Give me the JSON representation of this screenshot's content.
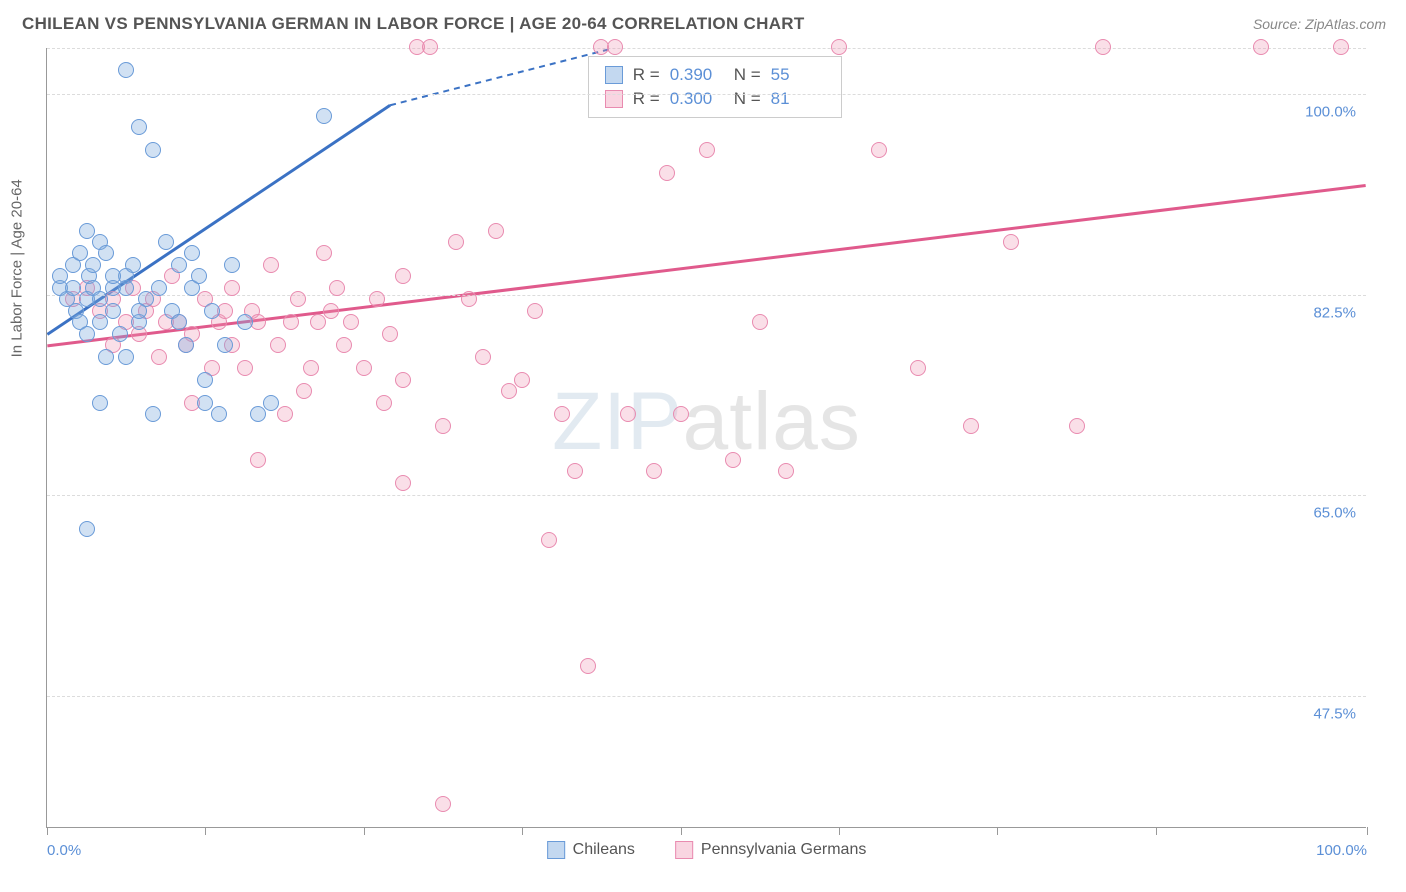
{
  "header": {
    "title": "CHILEAN VS PENNSYLVANIA GERMAN IN LABOR FORCE | AGE 20-64 CORRELATION CHART",
    "source": "Source: ZipAtlas.com"
  },
  "chart": {
    "type": "scatter",
    "y_axis_label": "In Labor Force | Age 20-64",
    "xlim": [
      0,
      100
    ],
    "ylim": [
      36,
      104
    ],
    "x_ticks": [
      0,
      12,
      24,
      36,
      48,
      60,
      72,
      84,
      100
    ],
    "x_tick_labels": {
      "0": "0.0%",
      "100": "100.0%"
    },
    "y_gridlines": [
      47.5,
      65.0,
      82.5,
      100.0,
      104.0
    ],
    "y_tick_labels": [
      "47.5%",
      "65.0%",
      "82.5%",
      "100.0%"
    ],
    "background_color": "#ffffff",
    "grid_color": "#dcdcdc",
    "axis_color": "#999999",
    "label_color_axis": "#666666",
    "label_color_ticks": "#5b8fd6",
    "title_color": "#555555",
    "title_fontsize": 17,
    "tick_fontsize": 15,
    "series": {
      "chileans": {
        "label": "Chileans",
        "color_fill": "rgba(123,168,222,0.35)",
        "color_stroke": "#6a9bd8",
        "marker_size": 16,
        "stats": {
          "R": "0.390",
          "N": "55"
        },
        "trendline": {
          "x1": 0,
          "y1": 79,
          "x2": 26,
          "y2": 99,
          "x2_dash": 43,
          "y2_dash": 104,
          "color": "#3b72c4",
          "width": 3
        },
        "points": [
          [
            1,
            83
          ],
          [
            1,
            84
          ],
          [
            1.5,
            82
          ],
          [
            2,
            85
          ],
          [
            2,
            83
          ],
          [
            2.2,
            81
          ],
          [
            2.5,
            86
          ],
          [
            2.5,
            80
          ],
          [
            3,
            88
          ],
          [
            3,
            82
          ],
          [
            3,
            79
          ],
          [
            3.2,
            84
          ],
          [
            3.5,
            83
          ],
          [
            3.5,
            85
          ],
          [
            4,
            87
          ],
          [
            4,
            82
          ],
          [
            4,
            80
          ],
          [
            4.5,
            77
          ],
          [
            4.5,
            86
          ],
          [
            5,
            83
          ],
          [
            5,
            81
          ],
          [
            5.5,
            79
          ],
          [
            6,
            84
          ],
          [
            6,
            83
          ],
          [
            6,
            102
          ],
          [
            6.5,
            85
          ],
          [
            7,
            80
          ],
          [
            7,
            97
          ],
          [
            7.5,
            82
          ],
          [
            8,
            95
          ],
          [
            8,
            72
          ],
          [
            8.5,
            83
          ],
          [
            9,
            87
          ],
          [
            9.5,
            81
          ],
          [
            10,
            85
          ],
          [
            10,
            80
          ],
          [
            10.5,
            78
          ],
          [
            11,
            83
          ],
          [
            11,
            86
          ],
          [
            11.5,
            84
          ],
          [
            12,
            73
          ],
          [
            12,
            75
          ],
          [
            12.5,
            81
          ],
          [
            13,
            72
          ],
          [
            13.5,
            78
          ],
          [
            3,
            62
          ],
          [
            4,
            73
          ],
          [
            5,
            84
          ],
          [
            6,
            77
          ],
          [
            7,
            81
          ],
          [
            14,
            85
          ],
          [
            15,
            80
          ],
          [
            16,
            72
          ],
          [
            17,
            73
          ],
          [
            21,
            98
          ]
        ]
      },
      "penn_germans": {
        "label": "Pennsylvania Germans",
        "color_fill": "rgba(240,150,180,0.30)",
        "color_stroke": "#e98bb0",
        "marker_size": 16,
        "stats": {
          "R": "0.300",
          "N": "81"
        },
        "trendline": {
          "x1": 0,
          "y1": 78,
          "x2": 100,
          "y2": 92,
          "color": "#e05a8c",
          "width": 3
        },
        "points": [
          [
            2,
            82
          ],
          [
            3,
            83
          ],
          [
            4,
            81
          ],
          [
            5,
            82
          ],
          [
            5,
            78
          ],
          [
            6,
            80
          ],
          [
            6.5,
            83
          ],
          [
            7,
            79
          ],
          [
            7.5,
            81
          ],
          [
            8,
            82
          ],
          [
            8.5,
            77
          ],
          [
            9,
            80
          ],
          [
            9.5,
            84
          ],
          [
            10,
            80
          ],
          [
            10.5,
            78
          ],
          [
            11,
            73
          ],
          [
            11,
            79
          ],
          [
            12,
            82
          ],
          [
            12.5,
            76
          ],
          [
            13,
            80
          ],
          [
            13.5,
            81
          ],
          [
            14,
            83
          ],
          [
            14,
            78
          ],
          [
            15,
            76
          ],
          [
            15.5,
            81
          ],
          [
            16,
            80
          ],
          [
            16,
            68
          ],
          [
            17,
            85
          ],
          [
            17.5,
            78
          ],
          [
            18,
            72
          ],
          [
            18.5,
            80
          ],
          [
            19,
            82
          ],
          [
            19.5,
            74
          ],
          [
            20,
            76
          ],
          [
            20.5,
            80
          ],
          [
            21,
            86
          ],
          [
            21.5,
            81
          ],
          [
            22,
            83
          ],
          [
            22.5,
            78
          ],
          [
            23,
            80
          ],
          [
            24,
            76
          ],
          [
            25,
            82
          ],
          [
            25.5,
            73
          ],
          [
            26,
            79
          ],
          [
            27,
            84
          ],
          [
            27,
            75
          ],
          [
            28,
            104
          ],
          [
            29,
            104
          ],
          [
            30,
            71
          ],
          [
            30,
            38
          ],
          [
            31,
            87
          ],
          [
            32,
            82
          ],
          [
            33,
            77
          ],
          [
            34,
            88
          ],
          [
            35,
            74
          ],
          [
            36,
            75
          ],
          [
            37,
            81
          ],
          [
            38,
            61
          ],
          [
            39,
            72
          ],
          [
            40,
            67
          ],
          [
            41,
            50
          ],
          [
            42,
            104
          ],
          [
            43,
            104
          ],
          [
            44,
            72
          ],
          [
            46,
            67
          ],
          [
            47,
            93
          ],
          [
            48,
            72
          ],
          [
            50,
            95
          ],
          [
            52,
            68
          ],
          [
            54,
            80
          ],
          [
            56,
            67
          ],
          [
            60,
            104
          ],
          [
            63,
            95
          ],
          [
            66,
            76
          ],
          [
            70,
            71
          ],
          [
            73,
            87
          ],
          [
            78,
            71
          ],
          [
            80,
            104
          ],
          [
            92,
            104
          ],
          [
            98,
            104
          ],
          [
            27,
            66
          ]
        ]
      }
    },
    "legend_bottom": [
      {
        "key": "chileans",
        "label": "Chileans"
      },
      {
        "key": "penn_germans",
        "label": "Pennsylvania Germans"
      }
    ],
    "stats_box": {
      "rows": [
        {
          "series": "chileans",
          "r_label": "R =",
          "r_val": "0.390",
          "n_label": "N =",
          "n_val": "55"
        },
        {
          "series": "penn_germans",
          "r_label": "R =",
          "r_val": "0.300",
          "n_label": "N =",
          "n_val": "81"
        }
      ]
    },
    "watermark": {
      "bold": "ZIP",
      "thin": "atlas"
    }
  }
}
